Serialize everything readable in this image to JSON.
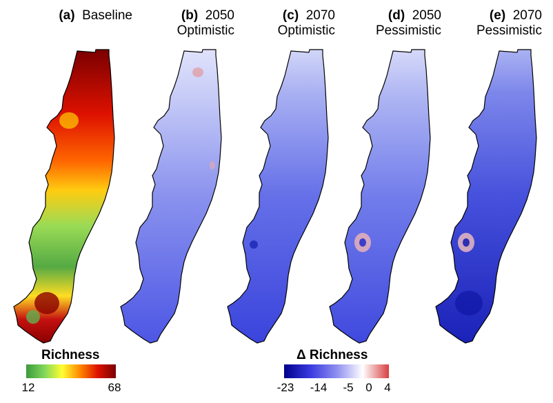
{
  "panels": [
    {
      "letter": "(a)",
      "line1": "Baseline",
      "line2": ""
    },
    {
      "letter": "(b)",
      "line1": "2050",
      "line2": "Optimistic"
    },
    {
      "letter": "(c)",
      "line1": "2070",
      "line2": "Optimistic"
    },
    {
      "letter": "(d)",
      "line1": "2050",
      "line2": "Pessimistic"
    },
    {
      "letter": "(e)",
      "line1": "2070",
      "line2": "Pessimistic"
    }
  ],
  "legend_richness": {
    "title": "Richness",
    "min_label": "12",
    "max_label": "68",
    "colors": [
      "#3c9a3c",
      "#7fd65a",
      "#ffff33",
      "#ff8800",
      "#dd1100",
      "#7a0000"
    ]
  },
  "legend_delta": {
    "title": "Δ Richness",
    "ticks": [
      "-23",
      "-14",
      "-5",
      "0",
      "4"
    ],
    "colors": [
      "#00008b",
      "#3a3ae0",
      "#8d8df0",
      "#ffffff",
      "#d84040"
    ]
  }
}
